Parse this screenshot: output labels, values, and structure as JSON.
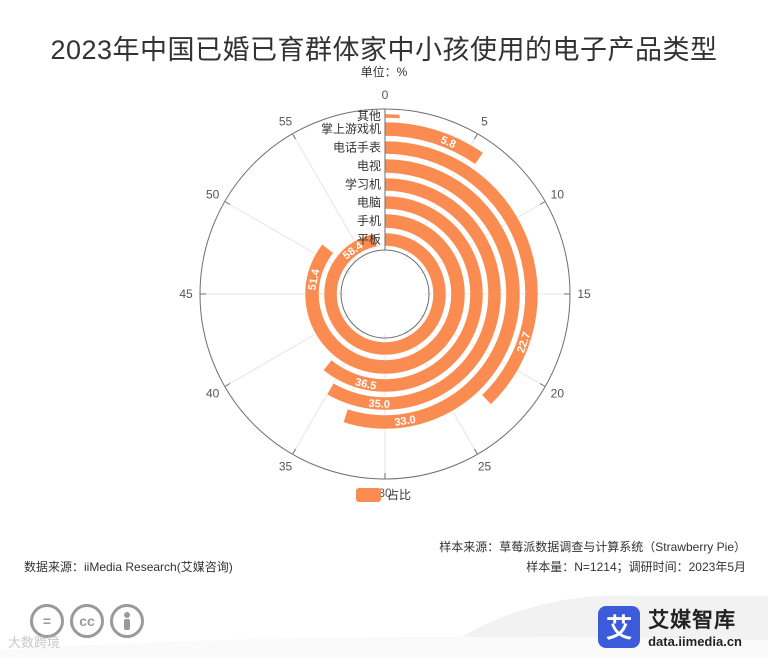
{
  "page": {
    "title": "2023年中国已婚已育群体家中小孩使用的电子产品类型",
    "unit_label": "单位：%",
    "sample_source": "样本来源：草莓派数据调查与计算系统（Strawberry Pie）",
    "sample_info": "样本量：N=1214；调研时间：2023年5月",
    "data_source": "数据来源：iiMedia Research(艾媒咨询)",
    "watermark": "大数跨境",
    "brand_name": "艾媒智库",
    "brand_url": "data.iimedia.cn",
    "brand_glyph": "艾",
    "cc_icons": [
      "=",
      "cc",
      "person"
    ]
  },
  "chart_data": {
    "type": "bar",
    "polar": true,
    "categories": [
      "平板",
      "手机",
      "电脑",
      "学习机",
      "电视",
      "电话手表",
      "掌上游戏机",
      "其他"
    ],
    "series": [
      {
        "name": "占比",
        "values": [
          58.4,
          51.4,
          36.5,
          35.0,
          33.0,
          22.7,
          5.8,
          0.8
        ],
        "labels": [
          "58.4",
          "51.4",
          "36.5",
          "35.0",
          "33.0",
          "22.7",
          "5.8",
          ""
        ]
      }
    ],
    "angle_axis": {
      "min": 0,
      "max": 60,
      "ticks": [
        0,
        5,
        10,
        15,
        20,
        25,
        30,
        35,
        40,
        45,
        50,
        55
      ]
    },
    "legend": {
      "position": "bottom",
      "entries": [
        "占比"
      ]
    },
    "color": "#fb8c51",
    "grid": true
  }
}
